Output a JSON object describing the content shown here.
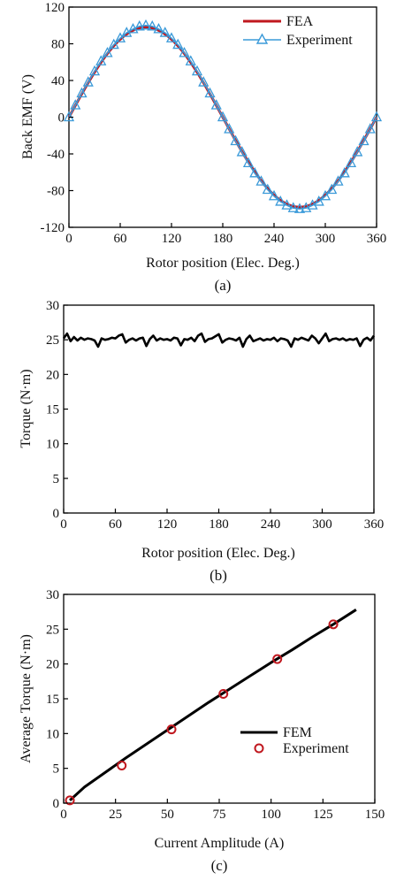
{
  "chart_data": [
    {
      "type": "line",
      "panel_label": "(a)",
      "xlabel": "Rotor position (Elec. Deg.)",
      "ylabel": "Back EMF (V)",
      "xlim": [
        0,
        360
      ],
      "ylim": [
        -120,
        120
      ],
      "xticks": [
        0,
        60,
        120,
        180,
        240,
        300,
        360
      ],
      "yticks": [
        -120,
        -80,
        -40,
        0,
        40,
        80,
        120
      ],
      "legend_position": "top-right",
      "series": [
        {
          "name": "FEA",
          "color": "#c0181f",
          "style": "line",
          "amplitude": 98,
          "phase_deg": 0,
          "x": [
            0,
            9,
            18,
            27,
            36,
            45,
            54,
            63,
            72,
            81,
            90,
            99,
            108,
            117,
            126,
            135,
            144,
            153,
            162,
            171,
            180,
            189,
            198,
            207,
            216,
            225,
            234,
            243,
            252,
            261,
            270,
            279,
            288,
            297,
            306,
            315,
            324,
            333,
            342,
            351,
            360
          ],
          "y": [
            0,
            15,
            30,
            44,
            58,
            69,
            79,
            87,
            93,
            97,
            98,
            97,
            93,
            87,
            79,
            69,
            58,
            44,
            30,
            15,
            0,
            -15,
            -30,
            -44,
            -58,
            -69,
            -79,
            -87,
            -93,
            -97,
            -98,
            -97,
            -93,
            -87,
            -79,
            -69,
            -58,
            -44,
            -30,
            -15,
            0
          ]
        },
        {
          "name": "Experiment",
          "color": "#3a9ad9",
          "style": "line-triangle",
          "x": [
            0,
            7.5,
            15,
            22.5,
            30,
            37.5,
            45,
            52.5,
            60,
            67.5,
            75,
            82.5,
            90,
            97.5,
            105,
            112.5,
            120,
            127.5,
            135,
            142.5,
            150,
            157.5,
            165,
            172.5,
            180,
            187.5,
            195,
            202.5,
            210,
            217.5,
            225,
            232.5,
            240,
            247.5,
            255,
            262.5,
            270,
            277.5,
            285,
            292.5,
            300,
            307.5,
            315,
            322.5,
            330,
            337.5,
            345,
            352.5,
            360
          ],
          "y": [
            0,
            13,
            26,
            38,
            50,
            61,
            70,
            79,
            86,
            92,
            96,
            99,
            100,
            99,
            96,
            92,
            86,
            79,
            70,
            61,
            50,
            38,
            26,
            13,
            0,
            -13,
            -26,
            -38,
            -50,
            -61,
            -70,
            -79,
            -86,
            -92,
            -96,
            -99,
            -100,
            -99,
            -96,
            -92,
            -86,
            -79,
            -70,
            -61,
            -50,
            -38,
            -26,
            -13,
            0
          ]
        }
      ]
    },
    {
      "type": "line",
      "panel_label": "(b)",
      "xlabel": "Rotor position (Elec. Deg.)",
      "ylabel": "Torque (N·m)",
      "xlim": [
        0,
        360
      ],
      "ylim": [
        0,
        30
      ],
      "xticks": [
        0,
        60,
        120,
        180,
        240,
        300,
        360
      ],
      "yticks": [
        0,
        5,
        10,
        15,
        20,
        25,
        30
      ],
      "series": [
        {
          "color": "#000000",
          "x": [
            0,
            4,
            8,
            12,
            16,
            20,
            24,
            28,
            32,
            36,
            40,
            44,
            48,
            52,
            56,
            60,
            64,
            68,
            72,
            76,
            80,
            84,
            88,
            92,
            96,
            100,
            104,
            108,
            112,
            116,
            120,
            124,
            128,
            132,
            136,
            140,
            144,
            148,
            152,
            156,
            160,
            164,
            168,
            172,
            176,
            180,
            184,
            188,
            192,
            196,
            200,
            204,
            208,
            212,
            216,
            220,
            224,
            228,
            232,
            236,
            240,
            244,
            248,
            252,
            256,
            260,
            264,
            268,
            272,
            276,
            280,
            284,
            288,
            292,
            296,
            300,
            304,
            308,
            312,
            316,
            320,
            324,
            328,
            332,
            336,
            340,
            344,
            348,
            352,
            356,
            360
          ],
          "y": [
            25.2,
            25.9,
            24.8,
            25.4,
            24.9,
            25.3,
            25.0,
            25.2,
            25.1,
            24.9,
            24.0,
            25.2,
            25.0,
            25.1,
            25.3,
            25.2,
            25.6,
            25.8,
            24.6,
            25.0,
            25.2,
            24.9,
            25.2,
            25.3,
            24.1,
            25.1,
            25.6,
            24.9,
            25.2,
            25.0,
            25.1,
            24.9,
            25.3,
            25.2,
            24.2,
            25.1,
            25.0,
            25.3,
            24.8,
            25.6,
            25.9,
            24.7,
            25.1,
            25.2,
            25.5,
            25.8,
            24.6,
            25.0,
            25.2,
            25.1,
            24.9,
            25.3,
            24.0,
            25.1,
            25.6,
            24.8,
            25.0,
            25.2,
            24.9,
            25.1,
            25.0,
            25.3,
            24.8,
            25.2,
            25.1,
            24.9,
            24.0,
            25.2,
            25.0,
            25.3,
            25.1,
            24.9,
            25.6,
            25.2,
            24.5,
            25.2,
            25.9,
            24.8,
            25.1,
            25.2,
            25.0,
            25.2,
            24.9,
            25.1,
            25.0,
            25.2,
            24.1,
            25.0,
            25.3,
            24.9,
            25.6
          ]
        }
      ]
    },
    {
      "type": "line",
      "panel_label": "(c)",
      "xlabel": "Current Amplitude (A)",
      "ylabel": "Average Torque (N·m)",
      "xlim": [
        0,
        150
      ],
      "ylim": [
        0,
        30
      ],
      "xticks": [
        0,
        25,
        50,
        75,
        100,
        125,
        150
      ],
      "yticks": [
        0,
        5,
        10,
        15,
        20,
        25,
        30
      ],
      "legend_position": "center-right",
      "series": [
        {
          "name": "FEM",
          "color": "#000000",
          "style": "line",
          "x": [
            3,
            10,
            20,
            30,
            40,
            50,
            60,
            70,
            80,
            90,
            100,
            110,
            120,
            130,
            141
          ],
          "y": [
            0.4,
            2.3,
            4.4,
            6.5,
            8.5,
            10.5,
            12.5,
            14.5,
            16.4,
            18.3,
            20.2,
            22.0,
            23.9,
            25.7,
            27.8
          ]
        },
        {
          "name": "Experiment",
          "color": "#c0181f",
          "style": "marker-circle",
          "x": [
            3,
            28,
            52,
            77,
            103,
            130
          ],
          "y": [
            0.4,
            5.4,
            10.6,
            15.7,
            20.7,
            25.7
          ]
        }
      ]
    }
  ]
}
